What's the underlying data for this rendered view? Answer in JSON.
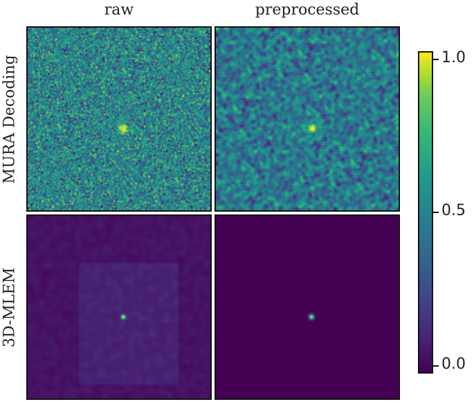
{
  "chart_data": {
    "type": "heatmap",
    "columns": [
      "raw",
      "preprocessed"
    ],
    "rows": [
      "MURA Decoding",
      "3D-MLEM"
    ],
    "colormap": "viridis",
    "colorbar": {
      "range": [
        0.0,
        1.0
      ],
      "ticks": [
        "1.0",
        "0.5",
        "0.0"
      ]
    },
    "panels": [
      {
        "row": "MURA Decoding",
        "column": "raw",
        "background_level": 0.45,
        "noise": "fine",
        "hotspot_peak": 1.0
      },
      {
        "row": "MURA Decoding",
        "column": "preprocessed",
        "background_level": 0.4,
        "noise": "smooth",
        "hotspot_peak": 1.0
      },
      {
        "row": "3D-MLEM",
        "column": "raw",
        "background_level": 0.05,
        "noise": "faint",
        "hotspot_peak": 1.0
      },
      {
        "row": "3D-MLEM",
        "column": "preprocessed",
        "background_level": 0.0,
        "noise": "none",
        "hotspot_peak": 1.0
      }
    ]
  }
}
